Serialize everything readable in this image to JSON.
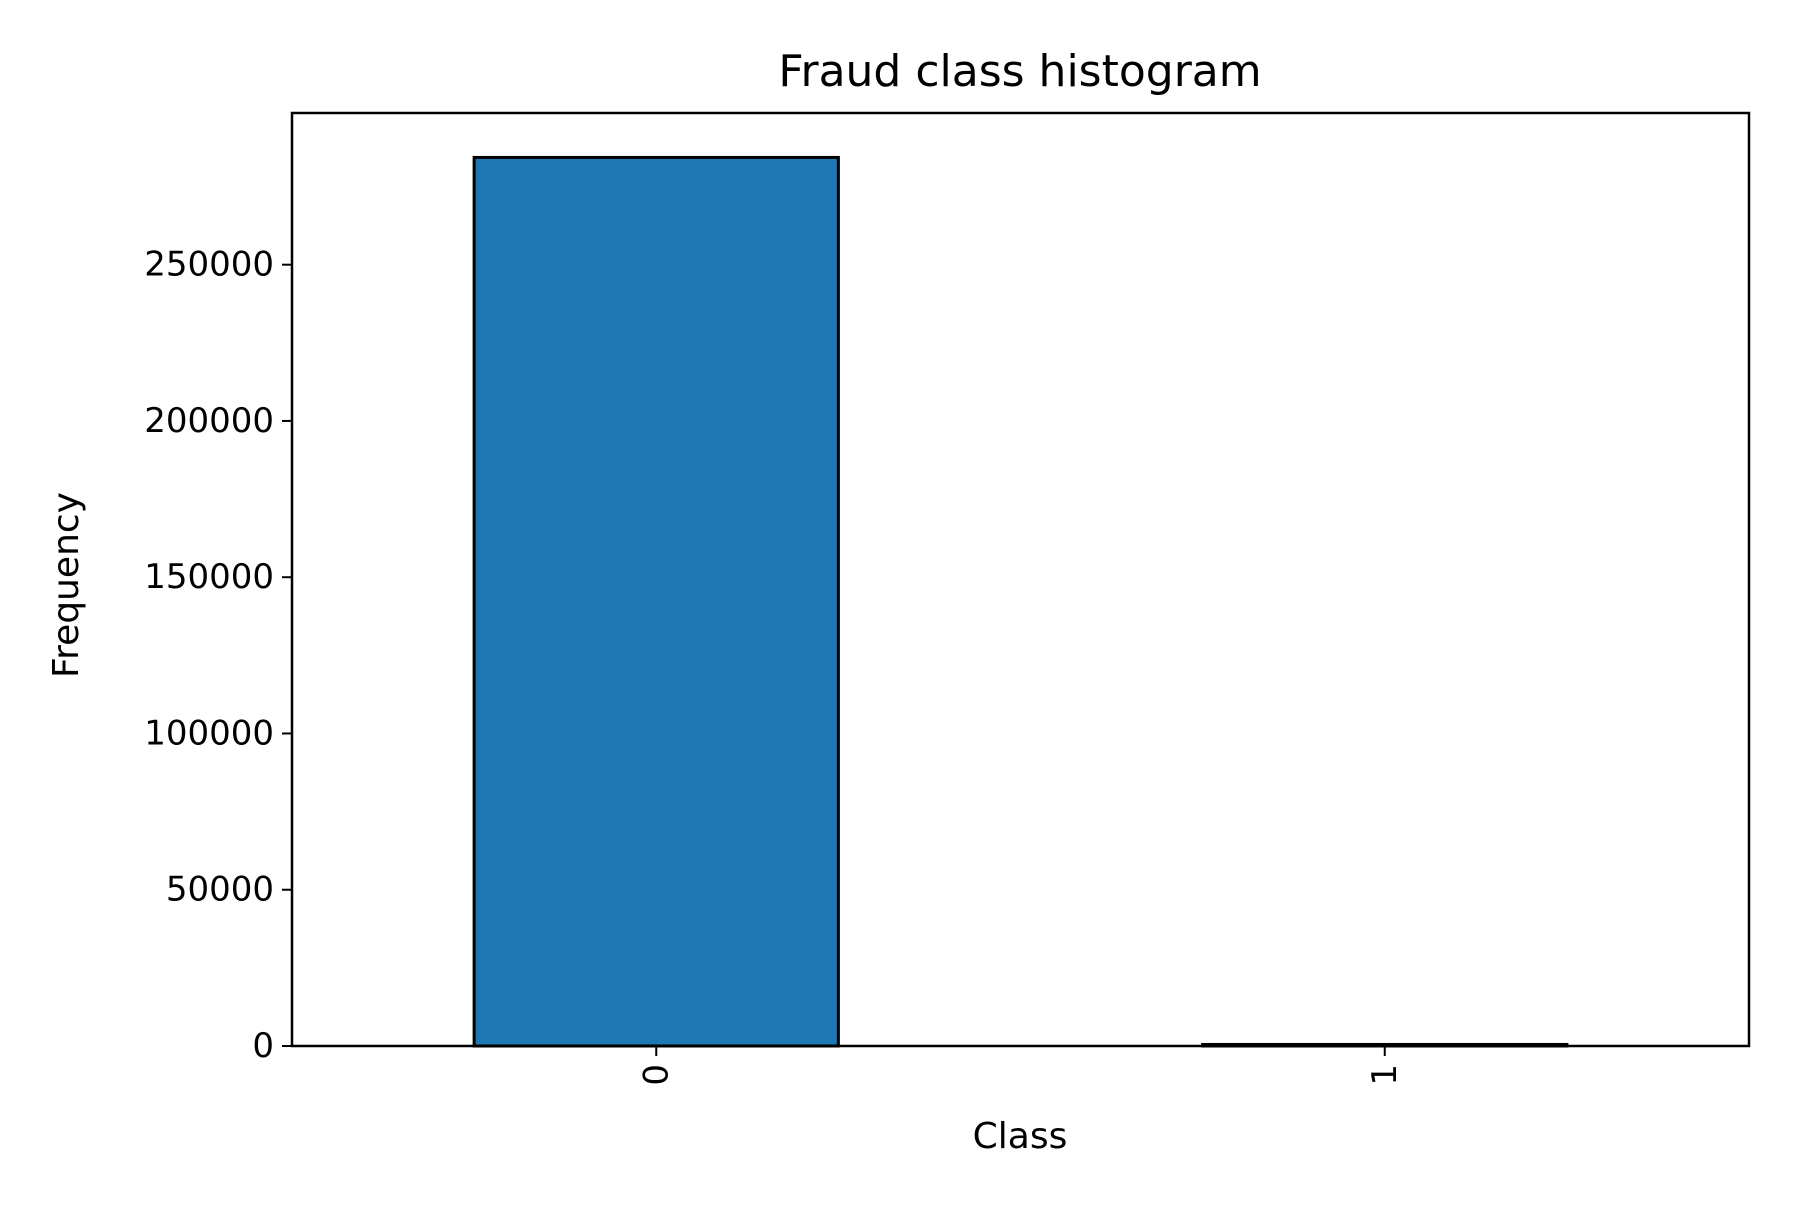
{
  "chart_data": {
    "type": "bar",
    "title": "Fraud class histogram",
    "xlabel": "Class",
    "ylabel": "Frequency",
    "categories": [
      "0",
      "1"
    ],
    "values": [
      284315,
      492
    ],
    "ylim": [
      0,
      298536
    ],
    "yticks": [
      0,
      50000,
      100000,
      150000,
      200000,
      250000
    ],
    "xtick_rotation": "vertical",
    "grid": false,
    "legend": "none",
    "colors": {
      "bar_fill": "#1f77b4",
      "bar_edge": "#000000",
      "axes": "#000000",
      "background": "#ffffff"
    }
  }
}
